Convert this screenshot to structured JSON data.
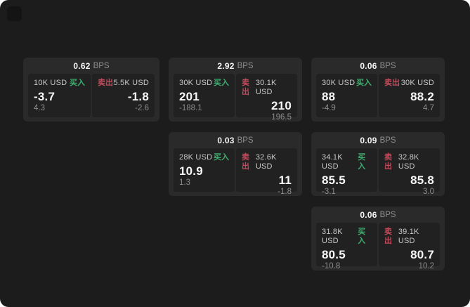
{
  "labels": {
    "bps": "BPS",
    "buy": "买入",
    "sell": "卖出"
  },
  "colors": {
    "page_bg": "#1c1c1d",
    "card_bg": "#2a2a2b",
    "panel_bg": "#212122",
    "buy_green": "#3fae6f",
    "sell_red": "#c24a5a"
  },
  "cards": [
    {
      "bps": "0.62",
      "buy": {
        "size": "10K USD",
        "value": "-3.7",
        "delta": "4.3"
      },
      "sell": {
        "size": "5.5K USD",
        "value": "-1.8",
        "delta": "-2.6"
      }
    },
    {
      "bps": "2.92",
      "buy": {
        "size": "30K USD",
        "value": "201",
        "delta": "-188.1"
      },
      "sell": {
        "size": "30.1K USD",
        "value": "210",
        "delta": "196.5"
      }
    },
    {
      "bps": "0.06",
      "buy": {
        "size": "30K USD",
        "value": "88",
        "delta": "-4.9"
      },
      "sell": {
        "size": "30K USD",
        "value": "88.2",
        "delta": "4.7"
      }
    },
    {
      "bps": "0.03",
      "buy": {
        "size": "28K USD",
        "value": "10.9",
        "delta": "1.3"
      },
      "sell": {
        "size": "32.6K USD",
        "value": "11",
        "delta": "-1.8"
      }
    },
    {
      "bps": "0.09",
      "buy": {
        "size": "34.1K USD",
        "value": "85.5",
        "delta": "-3.1"
      },
      "sell": {
        "size": "32.8K USD",
        "value": "85.8",
        "delta": "3.0"
      }
    },
    {
      "bps": "0.06",
      "buy": {
        "size": "31.8K USD",
        "value": "80.5",
        "delta": "-10.8"
      },
      "sell": {
        "size": "39.1K USD",
        "value": "80.7",
        "delta": "10.2"
      }
    }
  ]
}
